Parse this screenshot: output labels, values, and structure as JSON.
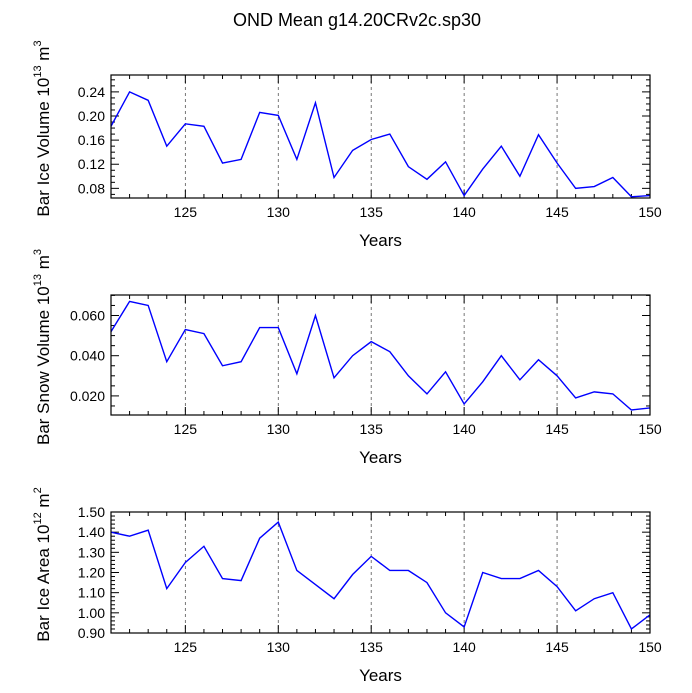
{
  "title": "OND Mean g14.20CRv2c.sp30",
  "chart_data": [
    {
      "type": "line",
      "ylabel": "Bar Ice Volume 10^13 m^3",
      "ylabel_parts": [
        "Bar Ice Volume 10",
        "13",
        " m",
        "3"
      ],
      "xlabel": "Years",
      "xlim": [
        121,
        150
      ],
      "ylim": [
        0.064,
        0.268
      ],
      "x_ticks": [
        125,
        130,
        135,
        140,
        145,
        150
      ],
      "y_ticks": [
        0.08,
        0.12,
        0.16,
        0.2,
        0.24
      ],
      "y_tick_labels": [
        "0.08",
        "0.12",
        "0.16",
        "0.20",
        "0.24"
      ],
      "grid": "vertical dashed at major x ticks",
      "line_color": "#0000ff",
      "x": [
        121,
        122,
        123,
        124,
        125,
        126,
        127,
        128,
        129,
        130,
        131,
        132,
        133,
        134,
        135,
        136,
        137,
        138,
        139,
        140,
        141,
        142,
        143,
        144,
        145,
        146,
        147,
        148,
        149,
        150
      ],
      "y": [
        0.183,
        0.24,
        0.226,
        0.15,
        0.187,
        0.183,
        0.122,
        0.128,
        0.206,
        0.201,
        0.128,
        0.222,
        0.098,
        0.143,
        0.161,
        0.17,
        0.116,
        0.095,
        0.124,
        0.068,
        0.112,
        0.15,
        0.1,
        0.169,
        0.122,
        0.08,
        0.083,
        0.098,
        0.066,
        0.068
      ]
    },
    {
      "type": "line",
      "ylabel": "Bar Snow Volume 10^13 m^3",
      "ylabel_parts": [
        "Bar Snow Volume 10",
        "13",
        " m",
        "3"
      ],
      "xlabel": "Years",
      "xlim": [
        121,
        150
      ],
      "ylim": [
        0.0105,
        0.0702
      ],
      "x_ticks": [
        125,
        130,
        135,
        140,
        145,
        150
      ],
      "y_ticks": [
        0.02,
        0.04,
        0.06
      ],
      "y_tick_labels": [
        "0.020",
        "0.040",
        "0.060"
      ],
      "grid": "vertical dashed at major x ticks",
      "line_color": "#0000ff",
      "x": [
        121,
        122,
        123,
        124,
        125,
        126,
        127,
        128,
        129,
        130,
        131,
        132,
        133,
        134,
        135,
        136,
        137,
        138,
        139,
        140,
        141,
        142,
        143,
        144,
        145,
        146,
        147,
        148,
        149,
        150
      ],
      "y": [
        0.052,
        0.067,
        0.065,
        0.037,
        0.053,
        0.051,
        0.035,
        0.037,
        0.054,
        0.054,
        0.031,
        0.06,
        0.029,
        0.04,
        0.047,
        0.042,
        0.03,
        0.021,
        0.032,
        0.016,
        0.027,
        0.04,
        0.028,
        0.038,
        0.03,
        0.019,
        0.022,
        0.021,
        0.013,
        0.014
      ]
    },
    {
      "type": "line",
      "ylabel": "Bar Ice Area 10^12 m^2",
      "ylabel_parts": [
        "Bar Ice Area 10",
        "12",
        " m",
        "2"
      ],
      "xlabel": "Years",
      "xlim": [
        121,
        150
      ],
      "ylim": [
        0.9,
        1.5
      ],
      "x_ticks": [
        125,
        130,
        135,
        140,
        145,
        150
      ],
      "y_ticks": [
        0.9,
        1.0,
        1.1,
        1.2,
        1.3,
        1.4,
        1.5
      ],
      "y_tick_labels": [
        "0.90",
        "1.00",
        "1.10",
        "1.20",
        "1.30",
        "1.40",
        "1.50"
      ],
      "grid": "vertical dashed at major x ticks",
      "line_color": "#0000ff",
      "x": [
        121,
        122,
        123,
        124,
        125,
        126,
        127,
        128,
        129,
        130,
        131,
        132,
        133,
        134,
        135,
        136,
        137,
        138,
        139,
        140,
        141,
        142,
        143,
        144,
        145,
        146,
        147,
        148,
        149,
        150
      ],
      "y": [
        1.4,
        1.38,
        1.41,
        1.12,
        1.25,
        1.33,
        1.17,
        1.16,
        1.37,
        1.45,
        1.21,
        1.14,
        1.07,
        1.19,
        1.28,
        1.21,
        1.21,
        1.15,
        1.0,
        0.93,
        1.2,
        1.17,
        1.17,
        1.21,
        1.13,
        1.01,
        1.07,
        1.1,
        0.92,
        0.99
      ]
    }
  ]
}
